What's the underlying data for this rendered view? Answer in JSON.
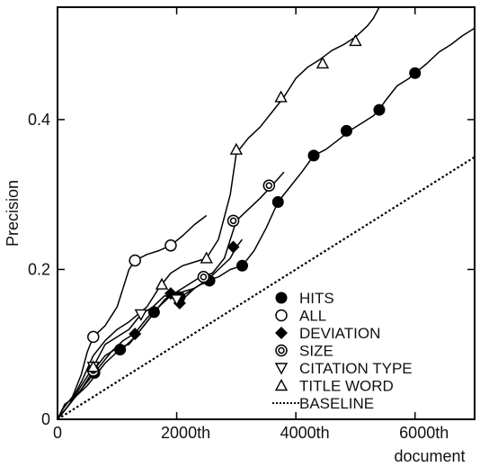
{
  "chart_data": {
    "type": "line",
    "title": "",
    "xlabel": "document",
    "ylabel": "Precision",
    "xlim": [
      0,
      7000
    ],
    "ylim": [
      0,
      0.55
    ],
    "x_ticks": [
      {
        "value": 0,
        "label": "0"
      },
      {
        "value": 2000,
        "label": "2000th"
      },
      {
        "value": 4000,
        "label": "4000th"
      },
      {
        "value": 6000,
        "label": "6000th"
      }
    ],
    "y_ticks": [
      {
        "value": 0,
        "label": "0"
      },
      {
        "value": 0.2,
        "label": "0.2"
      },
      {
        "value": 0.4,
        "label": "0.4"
      }
    ],
    "grid": false,
    "legend_position": "bottom-right",
    "series": [
      {
        "name": "HITS",
        "marker": "filled-circle",
        "line": [
          [
            0,
            0
          ],
          [
            120,
            0.02
          ],
          [
            300,
            0.03
          ],
          [
            500,
            0.045
          ],
          [
            650,
            0.06
          ],
          [
            800,
            0.075
          ],
          [
            1000,
            0.09
          ],
          [
            1100,
            0.095
          ],
          [
            1300,
            0.11
          ],
          [
            1500,
            0.13
          ],
          [
            1700,
            0.15
          ],
          [
            1900,
            0.165
          ],
          [
            2100,
            0.17
          ],
          [
            2300,
            0.175
          ],
          [
            2500,
            0.185
          ],
          [
            2700,
            0.19
          ],
          [
            2900,
            0.2
          ],
          [
            3100,
            0.205
          ],
          [
            3300,
            0.225
          ],
          [
            3500,
            0.255
          ],
          [
            3700,
            0.29
          ],
          [
            3900,
            0.31
          ],
          [
            4100,
            0.33
          ],
          [
            4300,
            0.352
          ],
          [
            4500,
            0.36
          ],
          [
            4700,
            0.372
          ],
          [
            4900,
            0.385
          ],
          [
            5100,
            0.395
          ],
          [
            5300,
            0.405
          ],
          [
            5400,
            0.413
          ],
          [
            5500,
            0.425
          ],
          [
            5700,
            0.445
          ],
          [
            5900,
            0.455
          ],
          [
            6000,
            0.462
          ],
          [
            6200,
            0.475
          ],
          [
            6400,
            0.49
          ],
          [
            6600,
            0.5
          ],
          [
            6800,
            0.512
          ],
          [
            7000,
            0.522
          ]
        ],
        "markers": [
          [
            620,
            0.062
          ],
          [
            1050,
            0.093
          ],
          [
            1620,
            0.143
          ],
          [
            2050,
            0.163
          ],
          [
            2550,
            0.185
          ],
          [
            3100,
            0.205
          ],
          [
            3700,
            0.29
          ],
          [
            4300,
            0.352
          ],
          [
            4850,
            0.385
          ],
          [
            5400,
            0.413
          ],
          [
            6000,
            0.462
          ]
        ]
      },
      {
        "name": "ALL",
        "marker": "open-circle",
        "line": [
          [
            0,
            0
          ],
          [
            100,
            0.015
          ],
          [
            250,
            0.03
          ],
          [
            400,
            0.06
          ],
          [
            500,
            0.09
          ],
          [
            600,
            0.11
          ],
          [
            800,
            0.125
          ],
          [
            1000,
            0.15
          ],
          [
            1100,
            0.175
          ],
          [
            1200,
            0.2
          ],
          [
            1300,
            0.212
          ],
          [
            1500,
            0.22
          ],
          [
            1700,
            0.225
          ],
          [
            1900,
            0.232
          ],
          [
            2100,
            0.245
          ],
          [
            2300,
            0.26
          ],
          [
            2500,
            0.272
          ]
        ],
        "markers": [
          [
            600,
            0.11
          ],
          [
            1300,
            0.212
          ],
          [
            1900,
            0.232
          ]
        ]
      },
      {
        "name": "DEVIATION",
        "marker": "filled-diamond",
        "line": [
          [
            0,
            0
          ],
          [
            200,
            0.02
          ],
          [
            400,
            0.04
          ],
          [
            700,
            0.07
          ],
          [
            900,
            0.09
          ],
          [
            1100,
            0.105
          ],
          [
            1300,
            0.115
          ],
          [
            1500,
            0.135
          ],
          [
            1700,
            0.15
          ],
          [
            1900,
            0.168
          ],
          [
            2100,
            0.16
          ],
          [
            2300,
            0.175
          ],
          [
            2500,
            0.185
          ],
          [
            2700,
            0.2
          ],
          [
            2900,
            0.215
          ],
          [
            3000,
            0.23
          ],
          [
            3100,
            0.24
          ]
        ],
        "markers": [
          [
            1300,
            0.114
          ],
          [
            1900,
            0.168
          ],
          [
            2050,
            0.155
          ],
          [
            2950,
            0.23
          ]
        ]
      },
      {
        "name": "SIZE",
        "marker": "double-circle",
        "line": [
          [
            0,
            0
          ],
          [
            200,
            0.02
          ],
          [
            400,
            0.04
          ],
          [
            600,
            0.065
          ],
          [
            800,
            0.085
          ],
          [
            1000,
            0.095
          ],
          [
            1200,
            0.1
          ],
          [
            1400,
            0.12
          ],
          [
            1600,
            0.14
          ],
          [
            1800,
            0.16
          ],
          [
            2000,
            0.17
          ],
          [
            2200,
            0.18
          ],
          [
            2400,
            0.19
          ],
          [
            2600,
            0.195
          ],
          [
            2800,
            0.215
          ],
          [
            3000,
            0.265
          ],
          [
            3200,
            0.28
          ],
          [
            3400,
            0.295
          ],
          [
            3600,
            0.312
          ],
          [
            3800,
            0.33
          ]
        ],
        "markers": [
          [
            600,
            0.065
          ],
          [
            2450,
            0.19
          ],
          [
            2950,
            0.265
          ],
          [
            3550,
            0.312
          ]
        ]
      },
      {
        "name": "CITATION TYPE",
        "marker": "down-triangle",
        "line": [
          [
            0,
            0
          ],
          [
            200,
            0.02
          ],
          [
            400,
            0.045
          ],
          [
            600,
            0.07
          ],
          [
            800,
            0.1
          ],
          [
            1000,
            0.11
          ],
          [
            1200,
            0.12
          ],
          [
            1400,
            0.14
          ],
          [
            1600,
            0.15
          ],
          [
            1800,
            0.165
          ],
          [
            2000,
            0.16
          ],
          [
            2200,
            0.17
          ],
          [
            2400,
            0.18
          ],
          [
            2600,
            0.185
          ]
        ],
        "markers": [
          [
            600,
            0.07
          ],
          [
            1400,
            0.14
          ],
          [
            2000,
            0.16
          ]
        ]
      },
      {
        "name": "TITLE WORD",
        "marker": "up-triangle",
        "line": [
          [
            0,
            0
          ],
          [
            200,
            0.02
          ],
          [
            400,
            0.05
          ],
          [
            600,
            0.085
          ],
          [
            800,
            0.105
          ],
          [
            1000,
            0.12
          ],
          [
            1200,
            0.13
          ],
          [
            1500,
            0.15
          ],
          [
            1700,
            0.175
          ],
          [
            1900,
            0.195
          ],
          [
            2100,
            0.205
          ],
          [
            2300,
            0.21
          ],
          [
            2500,
            0.215
          ],
          [
            2700,
            0.24
          ],
          [
            2900,
            0.3
          ],
          [
            3000,
            0.355
          ],
          [
            3200,
            0.375
          ],
          [
            3400,
            0.39
          ],
          [
            3600,
            0.41
          ],
          [
            3800,
            0.43
          ],
          [
            4000,
            0.455
          ],
          [
            4200,
            0.47
          ],
          [
            4400,
            0.48
          ],
          [
            4600,
            0.492
          ],
          [
            4800,
            0.5
          ],
          [
            5000,
            0.51
          ],
          [
            5200,
            0.525
          ],
          [
            5300,
            0.535
          ],
          [
            5400,
            0.55
          ]
        ],
        "markers": [
          [
            600,
            0.07
          ],
          [
            1750,
            0.18
          ],
          [
            2500,
            0.215
          ],
          [
            3000,
            0.36
          ],
          [
            3750,
            0.43
          ],
          [
            4450,
            0.475
          ],
          [
            5000,
            0.505
          ]
        ]
      },
      {
        "name": "BASELINE",
        "marker": "dotted-line",
        "line": [
          [
            0,
            0
          ],
          [
            7000,
            0.35
          ]
        ],
        "markers": []
      }
    ]
  }
}
